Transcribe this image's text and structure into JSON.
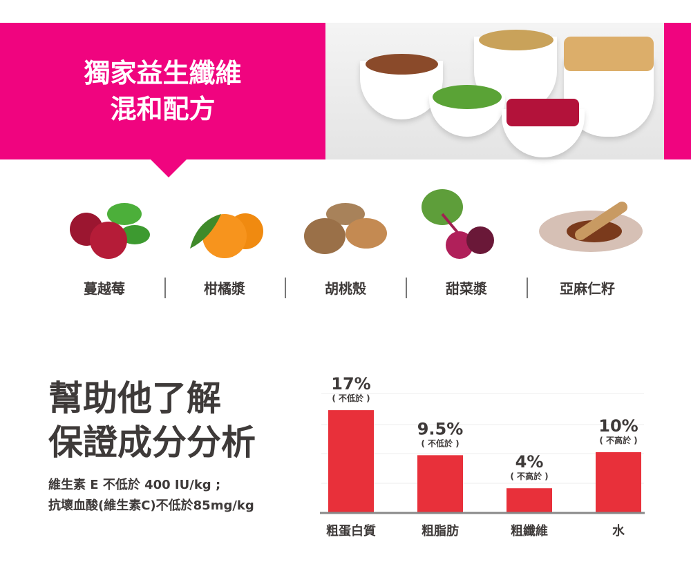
{
  "banner": {
    "title_line1": "獨家益生纖維",
    "title_line2": "混和配方",
    "color": "#f0047f"
  },
  "ingredients": [
    {
      "label": "蔓越莓",
      "icon": "cranberry-icon"
    },
    {
      "label": "柑橘漿",
      "icon": "orange-icon"
    },
    {
      "label": "胡桃殼",
      "icon": "walnut-icon"
    },
    {
      "label": "甜菜漿",
      "icon": "beet-icon"
    },
    {
      "label": "亞麻仁籽",
      "icon": "flaxseed-icon"
    }
  ],
  "analysis": {
    "title_line1": "幫助他了解",
    "title_line2": "保證成分分析",
    "desc_line1": "維生素 E 不低於 400 IU/kg ;",
    "desc_line2": "抗壞血酸(維生素C)不低於85mg/kg"
  },
  "chart_data": {
    "type": "bar",
    "categories": [
      "粗蛋白質",
      "粗脂肪",
      "粗纖維",
      "水"
    ],
    "values": [
      17,
      9.5,
      4,
      10
    ],
    "value_labels": [
      "17%",
      "9.5%",
      "4%",
      "10%"
    ],
    "qualifiers": [
      "( 不低於 )",
      "( 不低於 )",
      "( 不高於 )",
      "( 不高於 )"
    ],
    "ylim": [
      0,
      20
    ],
    "grid": true,
    "bar_color": "#e8303a"
  }
}
